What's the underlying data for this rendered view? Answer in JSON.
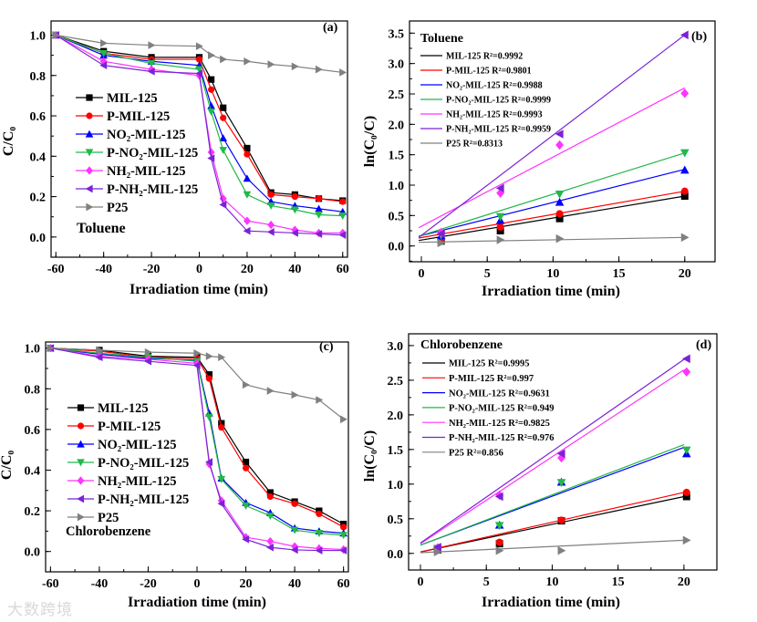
{
  "watermark": "大数跨境",
  "chart_data": [
    {
      "panel": "(a)",
      "type": "line",
      "annotation": "Toluene",
      "xlabel": "Irradiation time (min)",
      "ylabel": "C/C₀",
      "xlim": [
        -62,
        62
      ],
      "ylim": [
        -0.1,
        1.07
      ],
      "xticks": [
        -60,
        -40,
        -20,
        0,
        20,
        40,
        60
      ],
      "xminor": 10,
      "yticks": [
        0.0,
        0.2,
        0.4,
        0.6,
        0.8,
        1.0
      ],
      "yminor": 0.1,
      "ydecimals": 1,
      "x": [
        -60,
        -40,
        -20,
        0,
        5,
        10,
        20,
        30,
        40,
        50,
        60
      ],
      "series": [
        {
          "name": "MIL-125",
          "color": "#000000",
          "marker": "square",
          "values": [
            1.0,
            0.92,
            0.89,
            0.89,
            0.78,
            0.64,
            0.44,
            0.22,
            0.21,
            0.19,
            0.18
          ]
        },
        {
          "name": "P-MIL-125",
          "color": "#ff0000",
          "marker": "circle",
          "values": [
            1.0,
            0.91,
            0.88,
            0.88,
            0.73,
            0.59,
            0.41,
            0.21,
            0.2,
            0.19,
            0.175
          ]
        },
        {
          "name": "NO₂-MIL-125",
          "color": "#0000ff",
          "marker": "triangle-up",
          "values": [
            1.0,
            0.9,
            0.87,
            0.85,
            0.65,
            0.49,
            0.29,
            0.175,
            0.155,
            0.14,
            0.125
          ]
        },
        {
          "name": "P-NO₂-MIL-125",
          "color": "#22b84a",
          "marker": "triangle-down",
          "values": [
            1.0,
            0.91,
            0.86,
            0.83,
            0.62,
            0.43,
            0.21,
            0.155,
            0.135,
            0.11,
            0.105
          ]
        },
        {
          "name": "NH₂-MIL-125",
          "color": "#ff33ff",
          "marker": "diamond",
          "values": [
            1.0,
            0.87,
            0.83,
            0.8,
            0.42,
            0.19,
            0.08,
            0.06,
            0.035,
            0.02,
            0.02
          ]
        },
        {
          "name": "P-NH₂-MIL-125",
          "color": "#7b22d6",
          "marker": "triangle-left",
          "values": [
            1.0,
            0.85,
            0.82,
            0.81,
            0.39,
            0.16,
            0.03,
            0.025,
            0.02,
            0.015,
            0.01
          ]
        },
        {
          "name": "P25",
          "color": "#808080",
          "marker": "triangle-right",
          "values": [
            1.0,
            0.96,
            0.95,
            0.945,
            0.9,
            0.88,
            0.87,
            0.855,
            0.845,
            0.83,
            0.815
          ]
        }
      ]
    },
    {
      "panel": "(b)",
      "type": "scatter",
      "annotation": "Toluene",
      "xlabel": "Irradiation time (min)",
      "ylabel": "ln(C₀/C)",
      "xlim": [
        -0.9,
        22.3
      ],
      "ylim": [
        -0.26,
        3.7
      ],
      "xticks": [
        0,
        5,
        10,
        15,
        20
      ],
      "xminor": 2.5,
      "yticks": [
        0.0,
        0.5,
        1.0,
        1.5,
        2.0,
        2.5,
        3.0,
        3.5
      ],
      "yminor": 0.25,
      "ydecimals": 1,
      "x": [
        1.5,
        6,
        10.5,
        20
      ],
      "fit_x": [
        -0.2,
        20
      ],
      "series": [
        {
          "name": "MIL-125 R²=0.9992",
          "color": "#000000",
          "marker": "square",
          "values": [
            0.08,
            0.25,
            0.45,
            0.82
          ],
          "fit": [
            0.09,
            0.82
          ]
        },
        {
          "name": "P-MIL-125  R²=0.9801",
          "color": "#ff0000",
          "marker": "circle",
          "values": [
            0.12,
            0.31,
            0.53,
            0.9
          ],
          "fit": [
            0.13,
            0.9
          ]
        },
        {
          "name": "NO₂-MIL-125 R²=0.9988",
          "color": "#0000ff",
          "marker": "triangle-up",
          "values": [
            0.17,
            0.42,
            0.72,
            1.25
          ],
          "fit": [
            0.16,
            1.26
          ]
        },
        {
          "name": "P-NO₂-MIL-125  R²=0.9999",
          "color": "#22b84a",
          "marker": "triangle-down",
          "values": [
            0.18,
            0.48,
            0.85,
            1.53
          ],
          "fit": [
            0.16,
            1.53
          ]
        },
        {
          "name": "NH₂-MIL-125  R²=0.9993",
          "color": "#ff33ff",
          "marker": "diamond",
          "values": [
            0.22,
            0.87,
            1.66,
            2.51
          ],
          "fit": [
            0.3,
            2.6
          ]
        },
        {
          "name": "P-NH₂-MIL-125  R²=0.9959",
          "color": "#7b22d6",
          "marker": "triangle-left",
          "values": [
            0.2,
            0.95,
            1.84,
            3.47
          ],
          "fit": [
            0.14,
            3.47
          ]
        },
        {
          "name": "P25 R²=0.8313",
          "color": "#808080",
          "marker": "triangle-right",
          "values": [
            0.05,
            0.1,
            0.12,
            0.14
          ],
          "fit": [
            0.06,
            0.14
          ]
        }
      ]
    },
    {
      "panel": "(c)",
      "type": "line",
      "annotation": "Chlorobenzene",
      "xlabel": "Irradiation time (min)",
      "ylabel": "C/C₀",
      "xlim": [
        -62,
        62
      ],
      "ylim": [
        -0.1,
        1.03
      ],
      "xticks": [
        -60,
        -40,
        -20,
        0,
        20,
        40,
        60
      ],
      "xminor": 10,
      "yticks": [
        0.0,
        0.2,
        0.4,
        0.6,
        0.8,
        1.0
      ],
      "yminor": 0.1,
      "ydecimals": 1,
      "x": [
        -60,
        -40,
        -20,
        0,
        5,
        10,
        20,
        30,
        40,
        50,
        60
      ],
      "series": [
        {
          "name": "MIL-125",
          "color": "#000000",
          "marker": "square",
          "values": [
            1.0,
            0.99,
            0.96,
            0.955,
            0.87,
            0.63,
            0.44,
            0.29,
            0.245,
            0.2,
            0.135
          ]
        },
        {
          "name": "P-MIL-125",
          "color": "#ff0000",
          "marker": "circle",
          "values": [
            1.0,
            0.985,
            0.955,
            0.95,
            0.85,
            0.61,
            0.41,
            0.27,
            0.235,
            0.185,
            0.12
          ]
        },
        {
          "name": "NO₂-MIL-125",
          "color": "#0000ff",
          "marker": "triangle-up",
          "values": [
            1.0,
            0.97,
            0.95,
            0.94,
            0.68,
            0.36,
            0.24,
            0.19,
            0.115,
            0.1,
            0.09
          ]
        },
        {
          "name": "P-NO₂-MIL-125",
          "color": "#22b84a",
          "marker": "triangle-down",
          "values": [
            1.0,
            0.975,
            0.955,
            0.935,
            0.66,
            0.355,
            0.225,
            0.175,
            0.105,
            0.09,
            0.08
          ]
        },
        {
          "name": "NH₂-MIL-125",
          "color": "#ff33ff",
          "marker": "diamond",
          "values": [
            1.0,
            0.96,
            0.945,
            0.925,
            0.43,
            0.25,
            0.07,
            0.05,
            0.025,
            0.015,
            0.01
          ]
        },
        {
          "name": "P-NH₂-MIL-125",
          "color": "#7b22d6",
          "marker": "triangle-left",
          "values": [
            1.0,
            0.955,
            0.935,
            0.915,
            0.44,
            0.235,
            0.06,
            0.02,
            0.008,
            0.005,
            0.005
          ]
        },
        {
          "name": "P25",
          "color": "#808080",
          "marker": "triangle-right",
          "values": [
            1.0,
            0.99,
            0.98,
            0.975,
            0.96,
            0.955,
            0.82,
            0.79,
            0.77,
            0.745,
            0.65
          ]
        }
      ]
    },
    {
      "panel": "(d)",
      "type": "scatter",
      "annotation": "Chlorobenzene",
      "xlabel": "Irradiation time (min)",
      "ylabel": "ln(C₀/C)",
      "xlim": [
        -0.9,
        22.5
      ],
      "ylim": [
        -0.24,
        3.17
      ],
      "xticks": [
        0,
        5,
        10,
        15,
        20
      ],
      "xminor": 2.5,
      "yticks": [
        0.0,
        0.5,
        1.0,
        1.5,
        2.0,
        2.5,
        3.0
      ],
      "yminor": 0.25,
      "ydecimals": 1,
      "x": [
        1.3,
        6,
        10.7,
        20.2
      ],
      "fit_x": [
        0,
        20
      ],
      "series": [
        {
          "name": "MIL-125  R²=0.9995",
          "color": "#000000",
          "marker": "square",
          "values": [
            0.05,
            0.14,
            0.47,
            0.82
          ],
          "fit": [
            0.02,
            0.82
          ]
        },
        {
          "name": "P-MIL-125 R²=0.997",
          "color": "#ff0000",
          "marker": "circle",
          "values": [
            0.06,
            0.16,
            0.48,
            0.88
          ],
          "fit": [
            0.02,
            0.88
          ]
        },
        {
          "name": "NO₂-MIL-125  R²=0.9631",
          "color": "#0000ff",
          "marker": "triangle-up",
          "values": [
            0.07,
            0.41,
            1.03,
            1.44
          ],
          "fit": [
            0.12,
            1.53
          ]
        },
        {
          "name": "P-NO₂-MIL-125 R²=0.949",
          "color": "#22b84a",
          "marker": "triangle-down",
          "values": [
            0.07,
            0.4,
            1.02,
            1.49
          ],
          "fit": [
            0.12,
            1.57
          ]
        },
        {
          "name": "NH₂-MIL-125 R²=0.9825",
          "color": "#ff33ff",
          "marker": "diamond",
          "values": [
            0.08,
            0.84,
            1.38,
            2.62
          ],
          "fit": [
            0.14,
            2.65
          ]
        },
        {
          "name": "P-NH₂-MIL-125 R²=0.976",
          "color": "#7b22d6",
          "marker": "triangle-left",
          "values": [
            0.09,
            0.82,
            1.44,
            2.81
          ],
          "fit": [
            0.15,
            2.8
          ]
        },
        {
          "name": "P25 R²=0.856",
          "color": "#808080",
          "marker": "triangle-right",
          "values": [
            0.02,
            0.04,
            0.04,
            0.19
          ],
          "fit": [
            0.01,
            0.19
          ]
        }
      ]
    }
  ]
}
